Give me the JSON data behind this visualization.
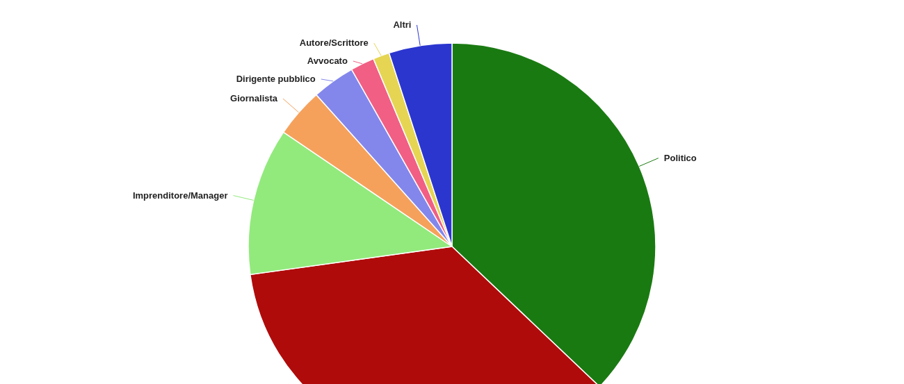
{
  "chart_data": {
    "type": "pie",
    "categories": [
      "Politico",
      null,
      "Imprenditore/Manager",
      "Giornalista",
      "Dirigente pubblico",
      "Avvocato",
      "Autore/Scrittore",
      "Altri"
    ],
    "values": [
      37.1,
      35.7,
      11.7,
      3.9,
      3.4,
      1.9,
      1.3,
      5.0
    ],
    "colors": [
      "#1a7a12",
      "#b00b0b",
      "#92ea7c",
      "#f5a15c",
      "#8387ec",
      "#f15f84",
      "#e5d552",
      "#2b36cf"
    ]
  }
}
